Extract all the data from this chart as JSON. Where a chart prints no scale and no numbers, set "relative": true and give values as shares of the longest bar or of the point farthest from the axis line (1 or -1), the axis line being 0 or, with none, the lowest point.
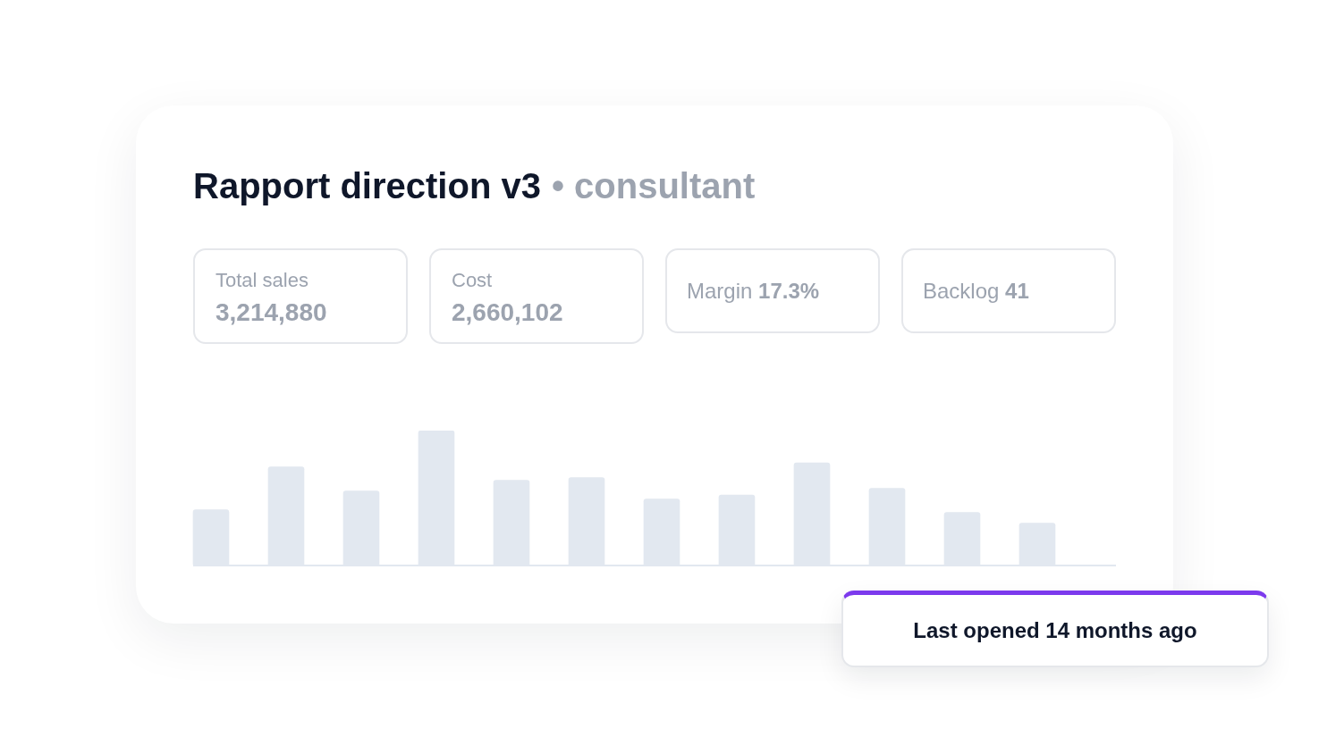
{
  "chart_data": {
    "type": "bar",
    "title": "Rapport direction v3",
    "subtitle": "• consultant",
    "categories": [
      null,
      null,
      null,
      null,
      null,
      null,
      null,
      null,
      null,
      null,
      null,
      null
    ],
    "values": [
      0.41,
      0.73,
      0.55,
      1,
      0.63,
      0.65,
      0.49,
      0.52,
      0.76,
      0.57,
      0.39,
      0.31
    ],
    "relative": true,
    "color": "#e2e8f0",
    "annotations": [
      "Total sales",
      "3,214,880",
      "Cost",
      "2,660,102",
      "Margin 17.3%",
      "Backlog 41",
      "Last opened 14 months ago"
    ]
  }
}
